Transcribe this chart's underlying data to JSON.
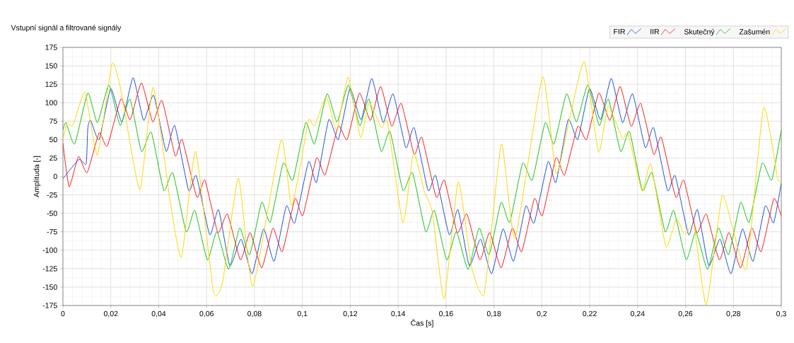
{
  "chart_data": {
    "type": "line",
    "title": "Vstupní signál a filtrované signály",
    "xlabel": "Čas [s]",
    "ylabel": "Amplituda [-]",
    "xlim": [
      0,
      0.3
    ],
    "ylim": [
      -175,
      175
    ],
    "xticks": [
      0,
      {
        "value": 0.02,
        "label": "0,02"
      },
      {
        "value": 0.04,
        "label": "0,04"
      },
      {
        "value": 0.06,
        "label": "0,06"
      },
      {
        "value": 0.08,
        "label": "0,08"
      },
      {
        "value": 0.1,
        "label": "0,1"
      },
      {
        "value": 0.12,
        "label": "0,12"
      },
      {
        "value": 0.14,
        "label": "0,14"
      },
      {
        "value": 0.16,
        "label": "0,16"
      },
      {
        "value": 0.18,
        "label": "0,18"
      },
      {
        "value": 0.2,
        "label": "0,2"
      },
      {
        "value": 0.22,
        "label": "0,22"
      },
      {
        "value": 0.24,
        "label": "0,24"
      },
      {
        "value": 0.26,
        "label": "0,26"
      },
      {
        "value": 0.28,
        "label": "0,28"
      },
      {
        "value": 0.3,
        "label": "0,3"
      }
    ],
    "yticks": [
      -175,
      -150,
      -125,
      -100,
      -75,
      -50,
      -25,
      0,
      25,
      50,
      75,
      100,
      125,
      150,
      175
    ],
    "grid": true,
    "legend": "top right",
    "series": [
      {
        "name": "FIR",
        "color": "#1f4fe0",
        "x": [
          0,
          0.0067,
          0.0097,
          0.0104,
          0.0116,
          0.0151,
          0.02,
          0.0246,
          0.0293,
          0.0337,
          0.0379,
          0.0431,
          0.0467,
          0.0525,
          0.0557,
          0.0613,
          0.065,
          0.0697,
          0.0744,
          0.079,
          0.0838,
          0.0882,
          0.0933,
          0.0968,
          0.1026,
          0.1059,
          0.111,
          0.115,
          0.1199,
          0.1245,
          0.129,
          0.1337,
          0.1379,
          0.1432,
          0.1467,
          0.1525,
          0.1557,
          0.1613,
          0.165,
          0.1697,
          0.1744,
          0.179,
          0.1838,
          0.1882,
          0.1933,
          0.1968,
          0.2026,
          0.2059,
          0.211,
          0.215,
          0.2199,
          0.2245,
          0.229,
          0.2337,
          0.2379,
          0.2432,
          0.2467,
          0.2525,
          0.2557,
          0.2613,
          0.265,
          0.2697,
          0.2744,
          0.279,
          0.2838,
          0.2882,
          0.2933,
          0.2968,
          0.3
        ],
        "values": [
          -3,
          23,
          17,
          66,
          76,
          50,
          119,
          74,
          134,
          76,
          110,
          34,
          69,
          -19,
          1,
          -79,
          -45,
          -121,
          -85,
          -132,
          -71,
          -115,
          -40,
          -63,
          20,
          -8,
          77,
          50,
          119,
          77,
          133,
          73,
          112,
          39,
          66,
          -19,
          1,
          -79,
          -45,
          -121,
          -85,
          -132,
          -71,
          -115,
          -40,
          -63,
          20,
          -8,
          77,
          50,
          119,
          77,
          133,
          73,
          112,
          39,
          66,
          -19,
          1,
          -79,
          -45,
          -121,
          -85,
          -132,
          -71,
          -115,
          -40,
          -63,
          -9
        ]
      },
      {
        "name": "IIR",
        "color": "#ff1a1a",
        "x": [
          0,
          0.0026,
          0.0065,
          0.0101,
          0.0151,
          0.0185,
          0.0242,
          0.0281,
          0.0328,
          0.0375,
          0.0414,
          0.0469,
          0.0498,
          0.0559,
          0.0593,
          0.0647,
          0.0687,
          0.0741,
          0.0782,
          0.083,
          0.0877,
          0.0916,
          0.0969,
          0.1002,
          0.1059,
          0.1095,
          0.115,
          0.1187,
          0.1238,
          0.1284,
          0.1327,
          0.1373,
          0.1413,
          0.1467,
          0.1499,
          0.1559,
          0.1593,
          0.1647,
          0.1687,
          0.1741,
          0.1782,
          0.183,
          0.1877,
          0.1916,
          0.1969,
          0.2002,
          0.2059,
          0.2095,
          0.215,
          0.2187,
          0.2238,
          0.2284,
          0.2327,
          0.2373,
          0.2413,
          0.2467,
          0.2499,
          0.2559,
          0.2593,
          0.2647,
          0.2687,
          0.2741,
          0.2782,
          0.283,
          0.2877,
          0.2916,
          0.2969,
          0.3
        ],
        "values": [
          45,
          -14,
          27,
          5,
          59,
          41,
          105,
          77,
          127,
          74,
          103,
          28,
          50,
          -28,
          -5,
          -76,
          -51,
          -113,
          -76,
          -124,
          -70,
          -102,
          -30,
          -53,
          25,
          2,
          68,
          50,
          113,
          76,
          122,
          68,
          99,
          30,
          53,
          -28,
          -5,
          -76,
          -51,
          -113,
          -76,
          -124,
          -70,
          -102,
          -30,
          -53,
          25,
          2,
          68,
          50,
          113,
          76,
          122,
          68,
          99,
          30,
          53,
          -28,
          -5,
          -76,
          -51,
          -113,
          -76,
          -124,
          -70,
          -102,
          -30,
          -54
        ]
      },
      {
        "name": "Skutečný",
        "color": "#14c414",
        "x": [
          0,
          0.0013,
          0.0049,
          0.0104,
          0.0144,
          0.0192,
          0.0239,
          0.028,
          0.0328,
          0.0369,
          0.0421,
          0.0459,
          0.0515,
          0.0551,
          0.0603,
          0.0643,
          0.0692,
          0.0738,
          0.078,
          0.083,
          0.0866,
          0.092,
          0.096,
          0.1014,
          0.1051,
          0.1103,
          0.1145,
          0.1192,
          0.124,
          0.1278,
          0.1329,
          0.1366,
          0.142,
          0.146,
          0.1515,
          0.1551,
          0.1603,
          0.1643,
          0.1692,
          0.1738,
          0.178,
          0.183,
          0.1866,
          0.192,
          0.196,
          0.2014,
          0.2051,
          0.2103,
          0.2145,
          0.2192,
          0.224,
          0.2278,
          0.2329,
          0.2366,
          0.242,
          0.246,
          0.2515,
          0.2551,
          0.2603,
          0.2643,
          0.2692,
          0.2738,
          0.278,
          0.283,
          0.2866,
          0.292,
          0.296,
          0.3
        ],
        "values": [
          63,
          73,
          44,
          113,
          73,
          124,
          69,
          105,
          34,
          60,
          -19,
          5,
          -75,
          -46,
          -113,
          -75,
          -126,
          -70,
          -106,
          -35,
          -62,
          18,
          -5,
          73,
          44,
          112,
          74,
          124,
          69,
          105,
          34,
          61,
          -19,
          5,
          -75,
          -46,
          -113,
          -75,
          -126,
          -70,
          -106,
          -35,
          -62,
          18,
          -5,
          73,
          44,
          112,
          74,
          124,
          69,
          105,
          34,
          61,
          -19,
          5,
          -75,
          -46,
          -113,
          -75,
          -126,
          -70,
          -106,
          -35,
          -62,
          18,
          -5,
          63
        ]
      },
      {
        "name": "Zašumén",
        "color": "#ffd700",
        "x": [
          0,
          0.0018,
          0.0042,
          0.0092,
          0.0144,
          0.0205,
          0.0244,
          0.0321,
          0.0377,
          0.0446,
          0.0495,
          0.0554,
          0.0628,
          0.0667,
          0.0733,
          0.0793,
          0.0911,
          0.0953,
          0.0992,
          0.1026,
          0.1051,
          0.11,
          0.1143,
          0.1191,
          0.1243,
          0.1279,
          0.133,
          0.1356,
          0.142,
          0.1464,
          0.1509,
          0.1543,
          0.1592,
          0.1651,
          0.1706,
          0.176,
          0.1831,
          0.1888,
          0.2003,
          0.206,
          0.2124,
          0.2178,
          0.2237,
          0.2277,
          0.2336,
          0.236,
          0.2419,
          0.2455,
          0.2518,
          0.2562,
          0.2596,
          0.2636,
          0.2687,
          0.2752,
          0.2793,
          0.2855,
          0.2926,
          0.2985,
          0.3
        ],
        "values": [
          49,
          73,
          69,
          114,
          29,
          153,
          114,
          -18,
          121,
          -30,
          -110,
          34,
          -155,
          -143,
          -2,
          -149,
          49,
          -39,
          15,
          77,
          69,
          108,
          63,
          135,
          53,
          100,
          66,
          73,
          -63,
          31,
          -20,
          -49,
          -166,
          -7,
          -122,
          -158,
          44,
          -84,
          135,
          4,
          90,
          156,
          33,
          95,
          52,
          58,
          -20,
          17,
          -95,
          -57,
          -79,
          -68,
          -174,
          -27,
          -65,
          -124,
          93,
          -3,
          -4
        ]
      }
    ]
  }
}
